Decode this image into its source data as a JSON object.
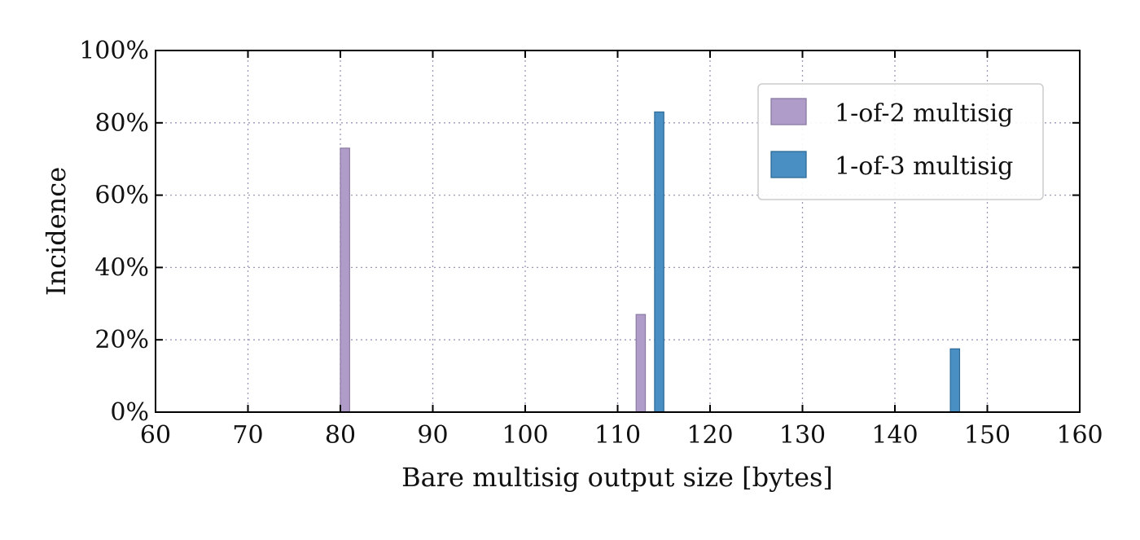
{
  "chart_data": {
    "type": "bar",
    "xlabel": "Bare multisig output size [bytes]",
    "ylabel": "Incidence",
    "xlim": [
      60,
      160
    ],
    "ylim": [
      0,
      100
    ],
    "xticks": [
      "60",
      "70",
      "80",
      "90",
      "100",
      "110",
      "120",
      "130",
      "140",
      "150",
      "160"
    ],
    "yticks": [
      "0%",
      "20%",
      "40%",
      "60%",
      "80%",
      "100%"
    ],
    "grid": true,
    "legend_position": "top-right",
    "series": [
      {
        "name": "1-of-2 multisig",
        "color": "#b09cc8",
        "points": [
          {
            "x": 80,
            "y": 73
          },
          {
            "x": 112,
            "y": 27
          }
        ]
      },
      {
        "name": "1-of-3 multisig",
        "color": "#4a8fc4",
        "points": [
          {
            "x": 114,
            "y": 83
          },
          {
            "x": 146,
            "y": 17.5
          }
        ]
      }
    ]
  }
}
